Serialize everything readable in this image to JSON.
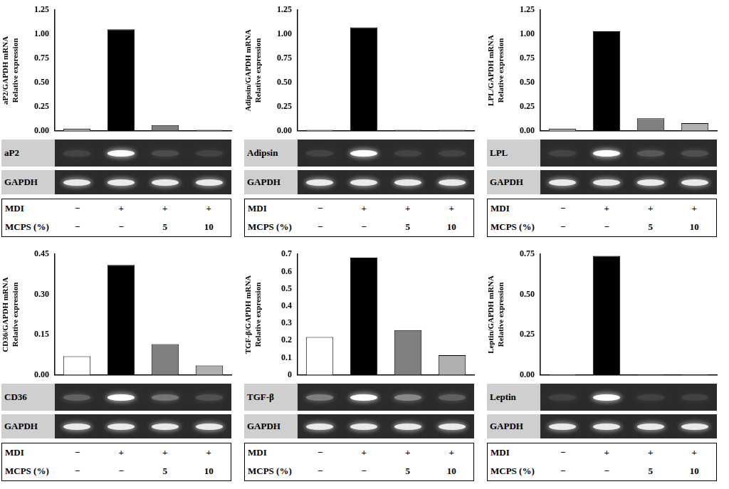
{
  "chart_data": [
    {
      "type": "bar",
      "y_label": [
        "aP2/GAPDH mRNA",
        "Relative expression"
      ],
      "categories": [
        null,
        null,
        null,
        null
      ],
      "values": [
        0.02,
        1.05,
        0.06,
        0.01
      ],
      "colors": [
        "#ffffff",
        "#000000",
        "#808080",
        "#b0b0b0"
      ],
      "ylim": [
        0,
        1.25
      ],
      "yticks": [
        {
          "value": 0,
          "label": "0.00"
        },
        0.25,
        {
          "value": 0.5,
          "label": "0.50"
        },
        0.75,
        {
          "value": 1,
          "label": "1.00"
        },
        1.25
      ],
      "grid": false,
      "tick_labels": "y",
      "gel_labels": [
        "aP2",
        "GAPDH"
      ],
      "table": {
        "rows": [
          {
            "label": "MDI",
            "cells": [
              "−",
              "+",
              "+",
              "+"
            ]
          },
          {
            "label": "MCPS (%)",
            "cells": [
              "−",
              "−",
              "5",
              "10"
            ]
          }
        ]
      }
    },
    {
      "type": "bar",
      "y_label": [
        "Adipsin/GAPDH mRNA",
        "Relative expression"
      ],
      "categories": [
        null,
        null,
        null,
        null
      ],
      "values": [
        0.01,
        1.07,
        0.01,
        0.01
      ],
      "colors": [
        "#ffffff",
        "#000000",
        "#808080",
        "#b0b0b0"
      ],
      "ylim": [
        0,
        1.25
      ],
      "yticks": [
        {
          "value": 0,
          "label": "0.00"
        },
        0.25,
        {
          "value": 0.5,
          "label": "0.50"
        },
        0.75,
        {
          "value": 1,
          "label": "1.00"
        },
        1.25
      ],
      "grid": false,
      "tick_labels": "y",
      "gel_labels": [
        "Adipsin",
        "GAPDH"
      ],
      "table": {
        "rows": [
          {
            "label": "MDI",
            "cells": [
              "−",
              "+",
              "+",
              "+"
            ]
          },
          {
            "label": "MCPS (%)",
            "cells": [
              "−",
              "−",
              "5",
              "10"
            ]
          }
        ]
      }
    },
    {
      "type": "bar",
      "y_label": [
        "LPL/GAPDH mRNA",
        "Relative expression"
      ],
      "categories": [
        null,
        null,
        null,
        null
      ],
      "values": [
        0.02,
        1.03,
        0.13,
        0.08
      ],
      "colors": [
        "#ffffff",
        "#000000",
        "#808080",
        "#b0b0b0"
      ],
      "ylim": [
        0,
        1.25
      ],
      "yticks": [
        {
          "value": 0,
          "label": "0.00"
        },
        0.25,
        {
          "value": 0.5,
          "label": "0.50"
        },
        0.75,
        {
          "value": 1,
          "label": "1.00"
        },
        1.25
      ],
      "grid": false,
      "tick_labels": "y",
      "gel_labels": [
        "LPL",
        "GAPDH"
      ],
      "table": {
        "rows": [
          {
            "label": "MDI",
            "cells": [
              "−",
              "+",
              "+",
              "+"
            ]
          },
          {
            "label": "MCPS (%)",
            "cells": [
              "−",
              "−",
              "5",
              "10"
            ]
          }
        ]
      }
    },
    {
      "type": "bar",
      "y_label": [
        "CD36/GAPDH mRNA",
        "Relative expression"
      ],
      "categories": [
        null,
        null,
        null,
        null
      ],
      "values": [
        0.07,
        0.41,
        0.115,
        0.035
      ],
      "colors": [
        "#ffffff",
        "#000000",
        "#808080",
        "#b0b0b0"
      ],
      "ylim": [
        0,
        0.45
      ],
      "yticks": [
        {
          "value": 0,
          "label": "0.00"
        },
        0.15,
        {
          "value": 0.3,
          "label": "0.30"
        },
        0.45
      ],
      "grid": false,
      "tick_labels": "y",
      "gel_labels": [
        "CD36",
        "GAPDH"
      ],
      "table": {
        "rows": [
          {
            "label": "MDI",
            "cells": [
              "−",
              "+",
              "+",
              "+"
            ]
          },
          {
            "label": "MCPS (%)",
            "cells": [
              "−",
              "−",
              "5",
              "10"
            ]
          }
        ]
      }
    },
    {
      "type": "bar",
      "y_label": [
        "TGF-β/GAPDH mRNA",
        "Relative expression"
      ],
      "categories": [
        null,
        null,
        null,
        null
      ],
      "values": [
        0.22,
        0.68,
        0.26,
        0.115
      ],
      "colors": [
        "#ffffff",
        "#000000",
        "#808080",
        "#b0b0b0"
      ],
      "ylim": [
        0,
        0.7
      ],
      "yticks": [
        0,
        0.1,
        0.2,
        0.3,
        0.4,
        0.5,
        0.6,
        0.7
      ],
      "grid": false,
      "tick_labels": "y",
      "gel_labels": [
        "TGF-β",
        "GAPDH"
      ],
      "table": {
        "rows": [
          {
            "label": "MDI",
            "cells": [
              "−",
              "+",
              "+",
              "+"
            ]
          },
          {
            "label": "MCPS (%)",
            "cells": [
              "−",
              "−",
              "5",
              "10"
            ]
          }
        ]
      }
    },
    {
      "type": "bar",
      "y_label": [
        "Leptin/GAPDH mRNA",
        "Relative expression"
      ],
      "categories": [
        null,
        null,
        null,
        null
      ],
      "values": [
        0.005,
        0.74,
        0.005,
        0.005
      ],
      "colors": [
        "#ffffff",
        "#000000",
        "#808080",
        "#b0b0b0"
      ],
      "ylim": [
        0,
        0.75
      ],
      "yticks": [
        {
          "value": 0,
          "label": "0.00"
        },
        0.25,
        {
          "value": 0.5,
          "label": "0.50"
        },
        0.75
      ],
      "grid": false,
      "tick_labels": "y",
      "gel_labels": [
        "Leptin",
        "GAPDH"
      ],
      "table": {
        "rows": [
          {
            "label": "MDI",
            "cells": [
              "−",
              "+",
              "+",
              "+"
            ]
          },
          {
            "label": "MCPS (%)",
            "cells": [
              "−",
              "−",
              "5",
              "10"
            ]
          }
        ]
      }
    }
  ]
}
